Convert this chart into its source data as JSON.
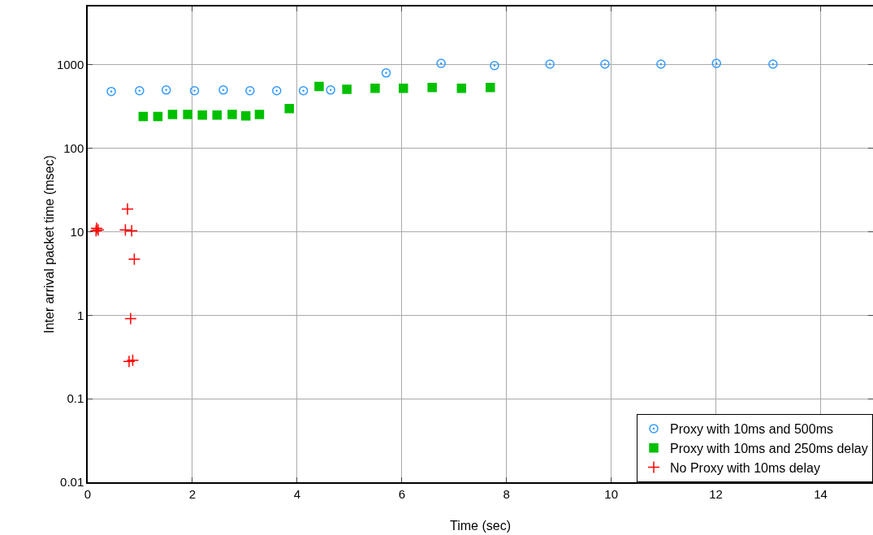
{
  "chart_data": {
    "type": "scatter",
    "xlabel": "Time (sec)",
    "ylabel": "Inter arrival packet time (msec)",
    "log": "y",
    "grid": true,
    "legend": "bottom right",
    "xlim": [
      0,
      15
    ],
    "xticks": [
      0,
      2,
      4,
      6,
      8,
      10,
      12,
      14
    ],
    "ylim": [
      0.01,
      5000
    ],
    "yticks": [
      0.01,
      0.1,
      1,
      10,
      100,
      1000
    ],
    "series": [
      {
        "name": "Proxy with 10ms and 500ms",
        "color": "#3399ff",
        "marker": "circle",
        "x": [
          0.45,
          0.99,
          1.5,
          2.04,
          2.59,
          3.1,
          3.61,
          4.12,
          4.64,
          5.7,
          6.75,
          7.77,
          8.83,
          9.88,
          10.95,
          12.01,
          13.09
        ],
        "values": [
          480,
          490,
          500,
          490,
          500,
          490,
          490,
          490,
          500,
          800,
          1040,
          980,
          1020,
          1020,
          1020,
          1040,
          1020
        ]
      },
      {
        "name": "Proxy with 10ms and 250ms delay",
        "color": "#00c000",
        "marker": "square",
        "x": [
          1.06,
          1.34,
          1.62,
          1.91,
          2.19,
          2.47,
          2.76,
          3.02,
          3.28,
          3.85,
          4.42,
          4.95,
          5.49,
          6.03,
          6.58,
          7.14,
          7.69
        ],
        "values": [
          240,
          240,
          255,
          255,
          250,
          250,
          255,
          245,
          255,
          300,
          550,
          510,
          525,
          525,
          535,
          525,
          535
        ]
      },
      {
        "name": "No Proxy with 10ms delay",
        "color": "#ff0000",
        "marker": "cross",
        "x": [
          0.16,
          0.17,
          0.2,
          0.72,
          0.76,
          0.84,
          0.89,
          0.82,
          0.79,
          0.86
        ],
        "values": [
          10.3,
          11,
          10.5,
          10.5,
          18.7,
          10.3,
          4.7,
          0.91,
          0.28,
          0.29
        ]
      }
    ]
  }
}
